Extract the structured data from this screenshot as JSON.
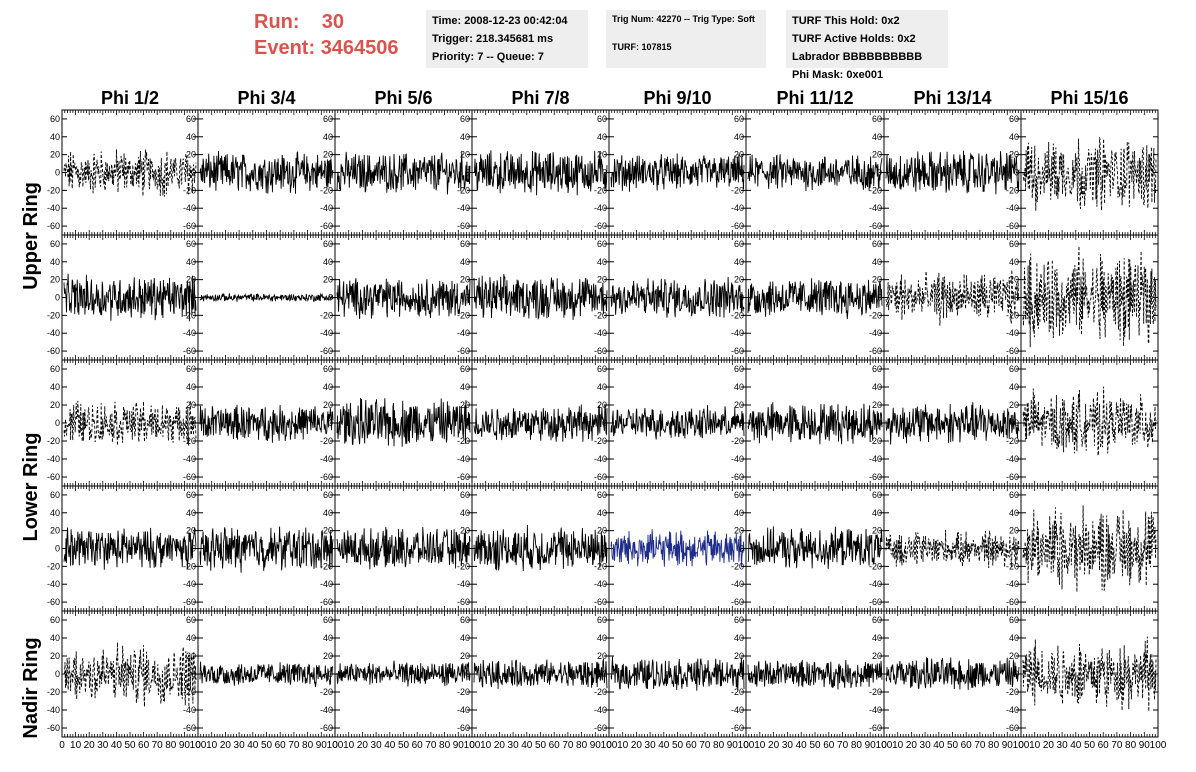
{
  "run": {
    "run_label": "Run:",
    "run_value": "30",
    "event_label": "Event:",
    "event_value": "3464506"
  },
  "info_boxes": [
    {
      "lines": [
        "Time: 2008-12-23 00:42:04",
        "Trigger: 218.345681 ms",
        "Priority: 7 -- Queue: 7"
      ]
    },
    {
      "lines": [
        "Trig Num: 42270 -- Trig Type: Soft",
        "",
        "TURF: 107815"
      ]
    },
    {
      "lines": [
        "TURF This Hold: 0x2",
        "TURF Active Holds: 0x2",
        "Labrador BBBBBBBBBB",
        "Phi Mask: 0xe001"
      ]
    }
  ],
  "phi_headers": [
    "Phi 1/2",
    "Phi 3/4",
    "Phi 5/6",
    "Phi 7/8",
    "Phi 9/10",
    "Phi 11/12",
    "Phi 13/14",
    "Phi 15/16"
  ],
  "ring_labels": {
    "upper": "Upper Ring",
    "lower": "Lower Ring",
    "nadir": "Nadir Ring"
  },
  "colors": {
    "trace": "#000000",
    "highlight_trace": "#1f2d8a",
    "run_text": "#d9534f",
    "info_bg": "#eeeeee"
  },
  "chart_data": {
    "type": "line",
    "title": "",
    "xlabel": "",
    "ylabel": "",
    "xlim": [
      0,
      100
    ],
    "ylim": [
      -70,
      70
    ],
    "y_ticks": [
      -60,
      -40,
      -20,
      0,
      20,
      40,
      60
    ],
    "y_tick_labels": [
      "-60",
      "-40",
      "-20",
      "0",
      "20",
      "40",
      "60"
    ],
    "x_tick_labels": [
      "0",
      "10",
      "20",
      "30",
      "40",
      "50",
      "60",
      "70",
      "80",
      "90",
      "100"
    ],
    "panel_rows": 5,
    "panel_cols": 8,
    "grid": false,
    "description_free": true,
    "panels": [
      {
        "row": 0,
        "col": 0,
        "amplitude": 18,
        "style": "dashed"
      },
      {
        "row": 0,
        "col": 1,
        "amplitude": 20,
        "style": "solid"
      },
      {
        "row": 0,
        "col": 2,
        "amplitude": 20,
        "style": "solid"
      },
      {
        "row": 0,
        "col": 3,
        "amplitude": 22,
        "style": "solid"
      },
      {
        "row": 0,
        "col": 4,
        "amplitude": 18,
        "style": "solid"
      },
      {
        "row": 0,
        "col": 5,
        "amplitude": 18,
        "style": "solid"
      },
      {
        "row": 0,
        "col": 6,
        "amplitude": 22,
        "style": "solid"
      },
      {
        "row": 0,
        "col": 7,
        "amplitude": 28,
        "style": "dashed"
      },
      {
        "row": 1,
        "col": 0,
        "amplitude": 22,
        "style": "solid"
      },
      {
        "row": 1,
        "col": 1,
        "amplitude": 4,
        "style": "solid"
      },
      {
        "row": 1,
        "col": 2,
        "amplitude": 20,
        "style": "solid"
      },
      {
        "row": 1,
        "col": 3,
        "amplitude": 22,
        "style": "solid"
      },
      {
        "row": 1,
        "col": 4,
        "amplitude": 20,
        "style": "solid"
      },
      {
        "row": 1,
        "col": 5,
        "amplitude": 20,
        "style": "solid"
      },
      {
        "row": 1,
        "col": 6,
        "amplitude": 20,
        "style": "dashed"
      },
      {
        "row": 1,
        "col": 7,
        "amplitude": 36,
        "style": "dashed"
      },
      {
        "row": 2,
        "col": 0,
        "amplitude": 18,
        "style": "dashed"
      },
      {
        "row": 2,
        "col": 1,
        "amplitude": 18,
        "style": "solid"
      },
      {
        "row": 2,
        "col": 2,
        "amplitude": 24,
        "style": "solid"
      },
      {
        "row": 2,
        "col": 3,
        "amplitude": 18,
        "style": "solid"
      },
      {
        "row": 2,
        "col": 4,
        "amplitude": 16,
        "style": "solid"
      },
      {
        "row": 2,
        "col": 5,
        "amplitude": 20,
        "style": "solid"
      },
      {
        "row": 2,
        "col": 6,
        "amplitude": 20,
        "style": "solid"
      },
      {
        "row": 2,
        "col": 7,
        "amplitude": 24,
        "style": "dashed"
      },
      {
        "row": 3,
        "col": 0,
        "amplitude": 20,
        "style": "solid"
      },
      {
        "row": 3,
        "col": 1,
        "amplitude": 22,
        "style": "solid"
      },
      {
        "row": 3,
        "col": 2,
        "amplitude": 20,
        "style": "solid"
      },
      {
        "row": 3,
        "col": 3,
        "amplitude": 22,
        "style": "solid"
      },
      {
        "row": 3,
        "col": 4,
        "amplitude": 18,
        "style": "highlight"
      },
      {
        "row": 3,
        "col": 5,
        "amplitude": 20,
        "style": "solid"
      },
      {
        "row": 3,
        "col": 6,
        "amplitude": 14,
        "style": "dashed"
      },
      {
        "row": 3,
        "col": 7,
        "amplitude": 32,
        "style": "dashed"
      },
      {
        "row": 4,
        "col": 0,
        "amplitude": 24,
        "style": "dashed"
      },
      {
        "row": 4,
        "col": 1,
        "amplitude": 12,
        "style": "solid"
      },
      {
        "row": 4,
        "col": 2,
        "amplitude": 12,
        "style": "solid"
      },
      {
        "row": 4,
        "col": 3,
        "amplitude": 14,
        "style": "solid"
      },
      {
        "row": 4,
        "col": 4,
        "amplitude": 16,
        "style": "solid"
      },
      {
        "row": 4,
        "col": 5,
        "amplitude": 14,
        "style": "solid"
      },
      {
        "row": 4,
        "col": 6,
        "amplitude": 16,
        "style": "solid"
      },
      {
        "row": 4,
        "col": 7,
        "amplitude": 26,
        "style": "dashed"
      }
    ]
  }
}
